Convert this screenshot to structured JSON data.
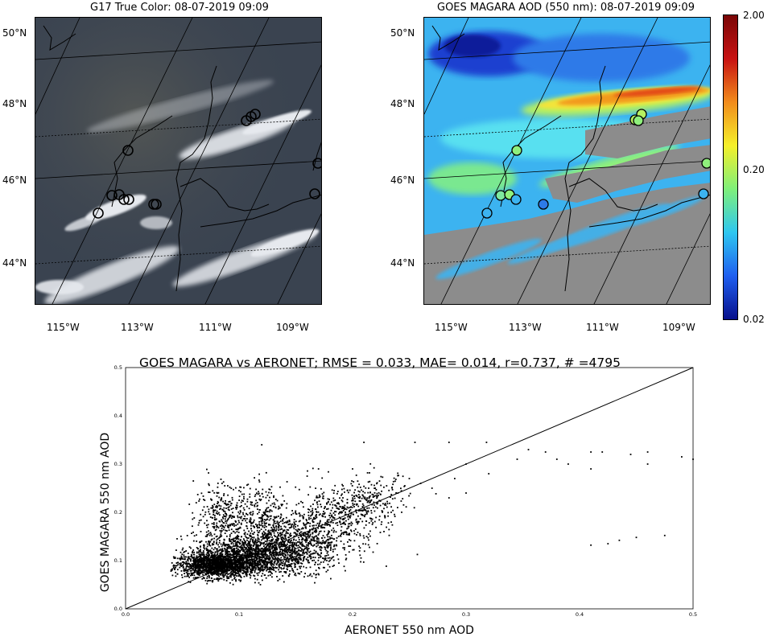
{
  "panels": {
    "left": {
      "title": "G17 True Color: 08-07-2019 09:09",
      "lat_labels": [
        "50°N",
        "48°N",
        "46°N",
        "44°N"
      ],
      "lon_labels": [
        "115°W",
        "113°W",
        "111°W",
        "109°W"
      ]
    },
    "right": {
      "title": "GOES MAGARA AOD (550 nm): 08-07-2019 09:09",
      "lat_labels": [
        "50°N",
        "48°N",
        "46°N",
        "44°N"
      ],
      "lon_labels": [
        "115°W",
        "113°W",
        "111°W",
        "109°W"
      ],
      "colorbar": {
        "labels": [
          "2.00",
          "0.20",
          "0.02"
        ],
        "colors": [
          "#08108c",
          "#1f5ff0",
          "#2ec7f0",
          "#7ff07a",
          "#f5f02a",
          "#f28c1c",
          "#c81212",
          "#7a0606"
        ],
        "scale": "log"
      }
    }
  },
  "chart_data": {
    "type": "scatter",
    "title": "GOES MAGARA vs AERONET; RMSE = 0.033, MAE= 0.014, r=0.737, # =4795",
    "xlabel": "AERONET 550 nm AOD",
    "ylabel": "GOES MAGARA 550 nm AOD",
    "xlim": [
      0.0,
      0.5
    ],
    "ylim": [
      0.0,
      0.5
    ],
    "xticks": [
      "0.0",
      "0.1",
      "0.2",
      "0.3",
      "0.4",
      "0.5"
    ],
    "yticks": [
      "0.0",
      "0.1",
      "0.2",
      "0.3",
      "0.4",
      "0.5"
    ],
    "reference_line": "1:1",
    "grid": false,
    "outliers": [
      [
        0.21,
        0.345
      ],
      [
        0.255,
        0.345
      ],
      [
        0.285,
        0.345
      ],
      [
        0.318,
        0.345
      ],
      [
        0.355,
        0.33
      ],
      [
        0.37,
        0.325
      ],
      [
        0.38,
        0.31
      ],
      [
        0.39,
        0.3
      ],
      [
        0.41,
        0.325
      ],
      [
        0.42,
        0.325
      ],
      [
        0.445,
        0.32
      ],
      [
        0.46,
        0.325
      ],
      [
        0.46,
        0.3
      ],
      [
        0.49,
        0.315
      ],
      [
        0.5,
        0.31
      ],
      [
        0.41,
        0.29
      ],
      [
        0.345,
        0.31
      ],
      [
        0.32,
        0.28
      ],
      [
        0.3,
        0.3
      ],
      [
        0.29,
        0.27
      ],
      [
        0.3,
        0.24
      ],
      [
        0.285,
        0.23
      ],
      [
        0.26,
        0.26
      ],
      [
        0.27,
        0.25
      ],
      [
        0.41,
        0.132
      ],
      [
        0.425,
        0.135
      ],
      [
        0.435,
        0.142
      ],
      [
        0.45,
        0.148
      ],
      [
        0.475,
        0.152
      ],
      [
        0.12,
        0.34
      ],
      [
        0.17,
        0.29
      ],
      [
        0.16,
        0.275
      ],
      [
        0.2,
        0.29
      ],
      [
        0.22,
        0.25
      ],
      [
        0.24,
        0.24
      ],
      [
        0.25,
        0.27
      ],
      [
        0.23,
        0.255
      ],
      [
        0.215,
        0.22
      ],
      [
        0.085,
        0.26
      ],
      [
        0.09,
        0.255
      ],
      [
        0.1,
        0.245
      ]
    ],
    "clusters": [
      {
        "cx": 0.08,
        "cy": 0.09,
        "sx": 0.018,
        "sy": 0.012,
        "n": 1500
      },
      {
        "cx": 0.11,
        "cy": 0.11,
        "sx": 0.025,
        "sy": 0.022,
        "n": 1400
      },
      {
        "cx": 0.15,
        "cy": 0.14,
        "sx": 0.025,
        "sy": 0.03,
        "n": 900
      },
      {
        "cx": 0.19,
        "cy": 0.2,
        "sx": 0.02,
        "sy": 0.03,
        "n": 350
      },
      {
        "cx": 0.085,
        "cy": 0.19,
        "sx": 0.012,
        "sy": 0.035,
        "n": 300
      },
      {
        "cx": 0.12,
        "cy": 0.2,
        "sx": 0.012,
        "sy": 0.03,
        "n": 200
      },
      {
        "cx": 0.22,
        "cy": 0.23,
        "sx": 0.015,
        "sy": 0.025,
        "n": 145
      }
    ]
  }
}
